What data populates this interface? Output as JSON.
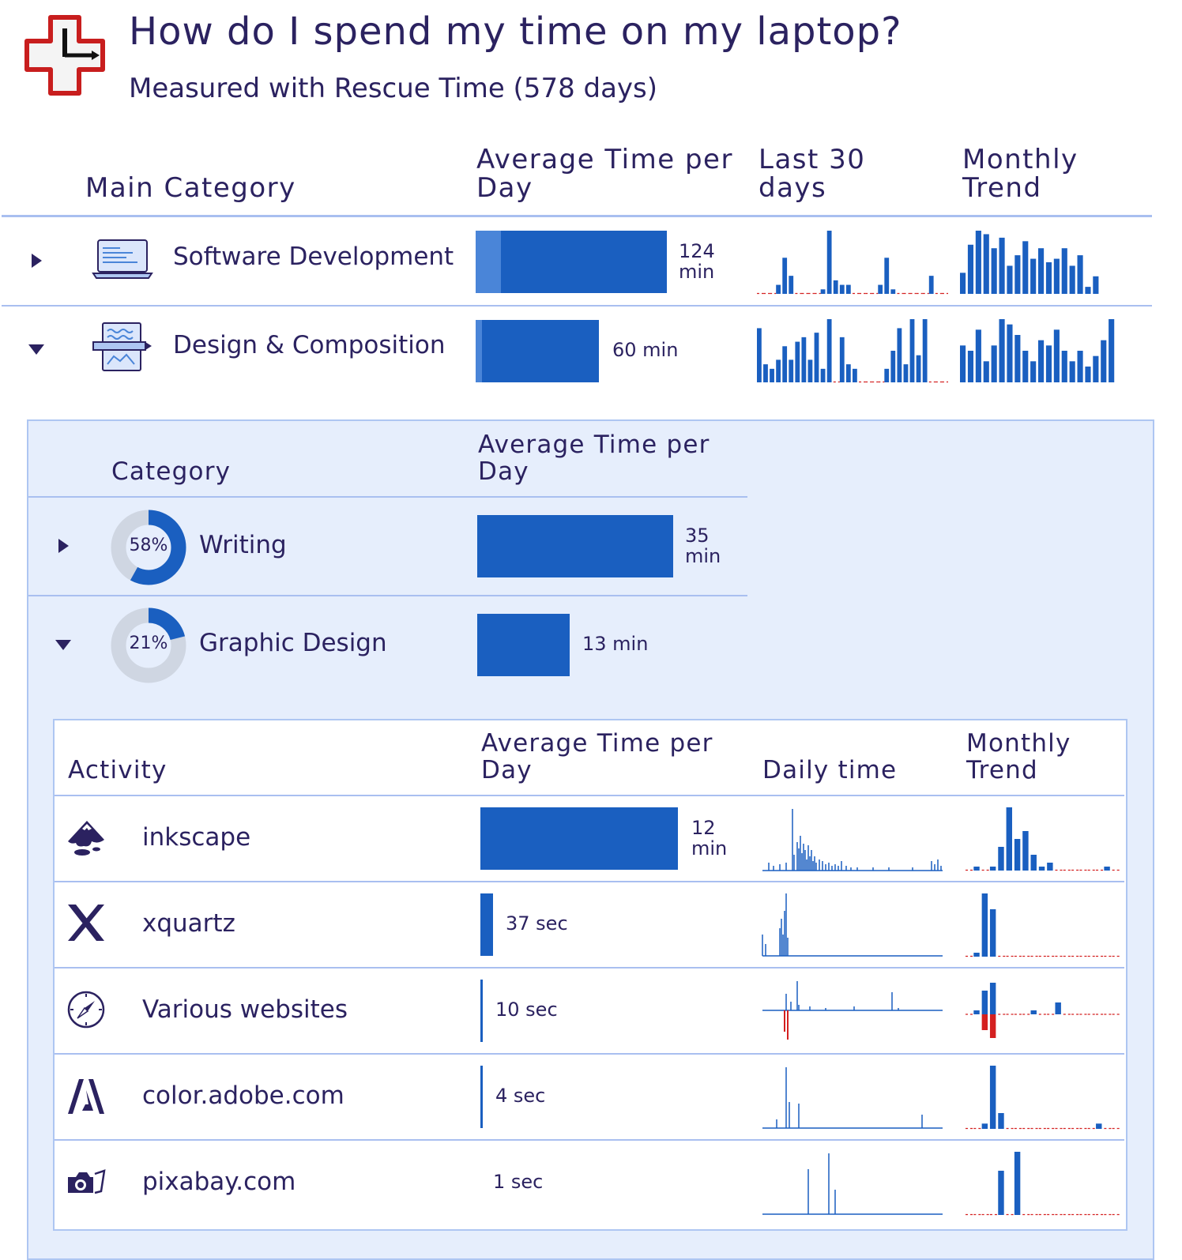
{
  "header": {
    "title": "How do I spend my time on my laptop?",
    "subtitle": "Measured with Rescue Time (578 days)"
  },
  "colors": {
    "accent": "#1a5fc0",
    "light_accent": "#4a85d8",
    "negative": "#d42020",
    "text": "#2b2260",
    "panel": "#e6eefc"
  },
  "main_table": {
    "columns": [
      "Main Category",
      "Average Time per Day",
      "Last 30 days",
      "Monthly Trend"
    ],
    "rows": [
      {
        "name": "Software Development",
        "icon": "laptop-code-icon",
        "expanded": false,
        "avg_minutes": 124,
        "avg_label_line1": "124",
        "avg_label_line2": "min",
        "last30": [
          0,
          0,
          0,
          2,
          8,
          4,
          0,
          0,
          0,
          0,
          1,
          14,
          3,
          2,
          2,
          0,
          0,
          0,
          0,
          2,
          8,
          1,
          0,
          0,
          0,
          0,
          0,
          4,
          0,
          0
        ],
        "monthly": [
          6,
          14,
          18,
          17,
          13,
          16,
          8,
          11,
          15,
          10,
          13,
          9,
          10,
          13,
          8,
          11,
          2,
          5,
          0,
          0
        ]
      },
      {
        "name": "Design & Composition",
        "icon": "design-document-icon",
        "expanded": true,
        "avg_minutes": 60,
        "avg_label": "60 min",
        "last30": [
          12,
          4,
          3,
          5,
          8,
          5,
          9,
          10,
          5,
          11,
          3,
          14,
          0,
          10,
          4,
          3,
          0,
          0,
          0,
          0,
          3,
          7,
          12,
          4,
          14,
          6,
          14,
          0,
          0,
          0
        ],
        "monthly": [
          7,
          6,
          10,
          4,
          7,
          12,
          11,
          9,
          6,
          4,
          8,
          7,
          10,
          6,
          4,
          6,
          3,
          5,
          8,
          12
        ]
      }
    ]
  },
  "category_table": {
    "columns": [
      "Category",
      "Average Time per Day"
    ],
    "rows": [
      {
        "name": "Writing",
        "percent": 58,
        "percent_label": "58%",
        "expanded": false,
        "avg_minutes": 35,
        "avg_label_line1": "35",
        "avg_label_line2": "min"
      },
      {
        "name": "Graphic Design",
        "percent": 21,
        "percent_label": "21%",
        "expanded": true,
        "avg_minutes": 13,
        "avg_label": "13 min"
      }
    ]
  },
  "activity_table": {
    "columns": [
      "Activity",
      "Average Time per Day",
      "Daily time",
      "Monthly Trend"
    ],
    "rows": [
      {
        "name": "inkscape",
        "icon": "inkscape-icon",
        "avg_seconds": 720,
        "avg_label_line1": "12",
        "avg_label_line2": "min",
        "monthly": [
          0,
          1,
          0,
          1,
          6,
          16,
          8,
          10,
          4,
          1,
          2,
          0,
          0,
          0,
          0,
          0,
          0,
          1,
          0
        ]
      },
      {
        "name": "xquartz",
        "icon": "xquartz-x-icon",
        "avg_seconds": 37,
        "avg_label": "37 sec",
        "monthly": [
          0,
          1,
          16,
          12,
          0,
          0,
          0,
          0,
          0,
          0,
          0,
          0,
          0,
          0,
          0,
          0,
          0,
          0,
          0
        ]
      },
      {
        "name": "Various websites",
        "icon": "compass-icon",
        "avg_seconds": 10,
        "avg_label": "10 sec",
        "monthly": [
          0,
          1,
          6,
          8,
          0,
          0,
          0,
          0,
          1,
          0,
          0,
          3,
          0,
          0,
          0,
          0,
          0,
          0,
          0
        ],
        "monthly_negative": [
          0,
          0,
          -4,
          -6,
          0,
          0,
          0,
          0,
          0,
          0,
          0,
          0,
          0,
          0,
          0,
          0,
          0,
          0,
          0
        ]
      },
      {
        "name": "color.adobe.com",
        "icon": "adobe-icon",
        "avg_seconds": 4,
        "avg_label": "4 sec",
        "monthly": [
          0,
          0,
          1,
          12,
          3,
          0,
          0,
          0,
          0,
          0,
          0,
          0,
          0,
          0,
          0,
          0,
          1,
          0,
          0
        ]
      },
      {
        "name": "pixabay.com",
        "icon": "camera-icon",
        "avg_seconds": 1,
        "avg_label": "1 sec",
        "monthly": [
          0,
          0,
          0,
          0,
          7,
          0,
          10,
          0,
          0,
          0,
          0,
          0,
          0,
          0,
          0,
          0,
          0,
          0,
          0
        ]
      }
    ]
  }
}
